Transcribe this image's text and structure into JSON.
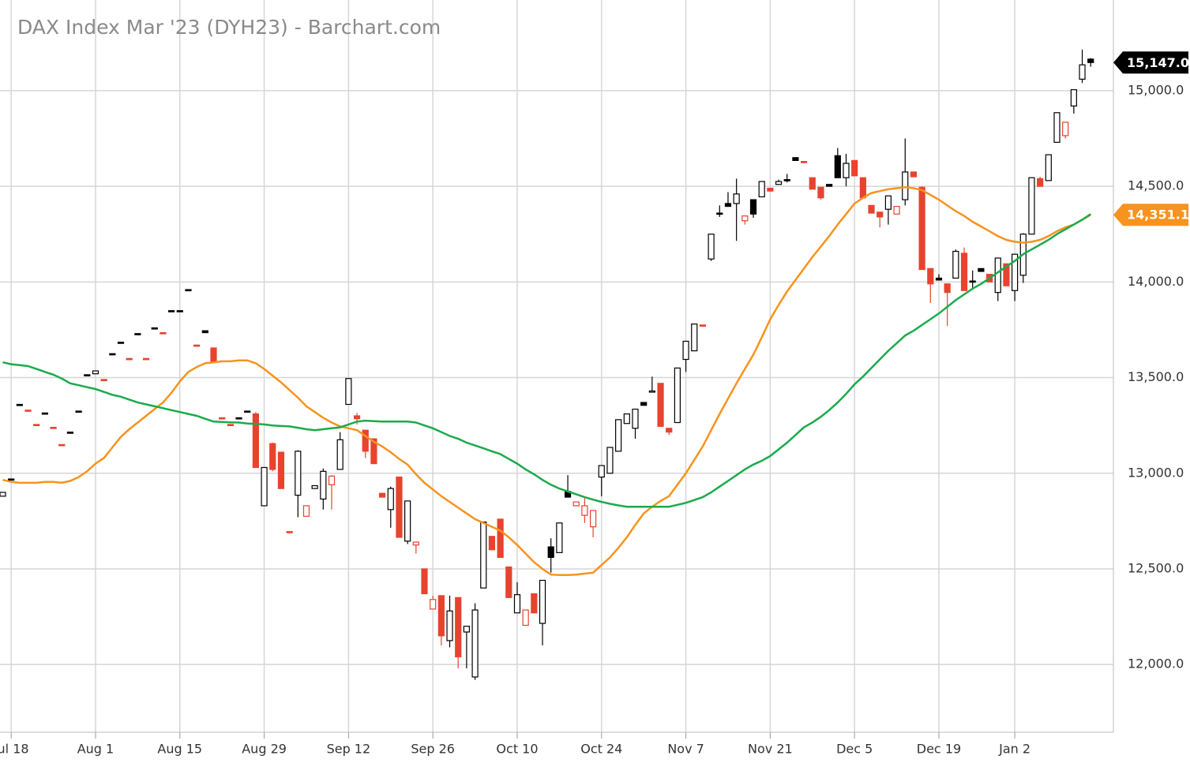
{
  "chart_data": {
    "type": "candlestick",
    "title": "DAX Index Mar '23 (DYH23) - Barchart.com",
    "categories": [
      null,
      "Jul 18",
      null,
      null,
      null,
      null,
      null,
      null,
      null,
      null,
      null,
      "Aug 1",
      null,
      null,
      null,
      null,
      null,
      null,
      null,
      null,
      null,
      "Aug 15",
      null,
      null,
      null,
      null,
      null,
      null,
      null,
      null,
      null,
      "Aug 29",
      null,
      null,
      null,
      null,
      null,
      null,
      null,
      null,
      null,
      "Sep 12",
      null,
      null,
      null,
      null,
      null,
      null,
      null,
      null,
      null,
      "Sep 26",
      null,
      null,
      null,
      null,
      null,
      null,
      null,
      null,
      null,
      "Oct 10",
      null,
      null,
      null,
      null,
      null,
      null,
      null,
      null,
      null,
      "Oct 24",
      null,
      null,
      null,
      null,
      null,
      null,
      null,
      null,
      null,
      "Nov 7",
      null,
      null,
      null,
      null,
      null,
      null,
      null,
      null,
      null,
      "Nov 21",
      null,
      null,
      null,
      null,
      null,
      null,
      null,
      null,
      null,
      "Dec 5",
      null,
      null,
      null,
      null,
      null,
      null,
      null,
      null,
      null,
      "Dec 19",
      null,
      null,
      null,
      null,
      null,
      null,
      null,
      null,
      "Jan 2",
      null,
      null,
      null,
      null,
      null,
      null,
      null,
      null,
      null
    ],
    "ohlc": [
      [
        12880,
        12900,
        12880,
        12900
      ],
      [
        12970,
        12970,
        12970,
        12970
      ],
      [
        13360,
        13360,
        13360,
        13360
      ],
      [
        13330,
        13330,
        13330,
        13330
      ],
      [
        13255,
        13255,
        13255,
        13255
      ],
      [
        13315,
        13315,
        13315,
        13315
      ],
      [
        13240,
        13240,
        13240,
        13240
      ],
      [
        13150,
        13150,
        13150,
        13150
      ],
      [
        13215,
        13215,
        13215,
        13215
      ],
      [
        13325,
        13325,
        13325,
        13325
      ],
      [
        13515,
        13515,
        13515,
        13515
      ],
      [
        13520,
        13535,
        13520,
        13535
      ],
      [
        13490,
        13490,
        13490,
        13490
      ],
      [
        13625,
        13625,
        13625,
        13625
      ],
      [
        13685,
        13685,
        13685,
        13685
      ],
      [
        13600,
        13600,
        13600,
        13600
      ],
      [
        13730,
        13730,
        13730,
        13730
      ],
      [
        13600,
        13600,
        13600,
        13600
      ],
      [
        13760,
        13760,
        13760,
        13760
      ],
      [
        13735,
        13735,
        13735,
        13735
      ],
      [
        13850,
        13850,
        13850,
        13850
      ],
      [
        13850,
        13850,
        13850,
        13850
      ],
      [
        13960,
        13960,
        13960,
        13960
      ],
      [
        13670,
        13670,
        13670,
        13670
      ],
      [
        13745,
        13745,
        13735,
        13735
      ],
      [
        13655,
        13655,
        13585,
        13585
      ],
      [
        13290,
        13290,
        13290,
        13290
      ],
      [
        13255,
        13255,
        13255,
        13255
      ],
      [
        13290,
        13290,
        13290,
        13290
      ],
      [
        13325,
        13325,
        13325,
        13325
      ],
      [
        13310,
        13320,
        13030,
        13030
      ],
      [
        12830,
        13030,
        12830,
        13030
      ],
      [
        13155,
        13160,
        13010,
        13020
      ],
      [
        13110,
        13110,
        12920,
        12920
      ],
      [
        12695,
        12695,
        12695,
        12695
      ],
      [
        12885,
        13120,
        12770,
        13115
      ],
      [
        12775,
        12830,
        12775,
        12830
      ],
      [
        12920,
        12935,
        12920,
        12935
      ],
      [
        12865,
        13025,
        12810,
        13010
      ],
      [
        12940,
        12990,
        12810,
        12985
      ],
      [
        13020,
        13215,
        13020,
        13175
      ],
      [
        13360,
        13495,
        13360,
        13495
      ],
      [
        13300,
        13315,
        13255,
        13285
      ],
      [
        13225,
        13225,
        13080,
        13115
      ],
      [
        13180,
        13180,
        13050,
        13050
      ],
      [
        12895,
        12895,
        12875,
        12875
      ],
      [
        12810,
        12930,
        12715,
        12920
      ],
      [
        12980,
        12980,
        12665,
        12665
      ],
      [
        12645,
        12855,
        12630,
        12855
      ],
      [
        12625,
        12640,
        12580,
        12640
      ],
      [
        12500,
        12500,
        12370,
        12370
      ],
      [
        12290,
        12360,
        12290,
        12340
      ],
      [
        12360,
        12360,
        12100,
        12150
      ],
      [
        12125,
        12360,
        12090,
        12280
      ],
      [
        12350,
        12350,
        11980,
        12040
      ],
      [
        12170,
        12200,
        11980,
        12200
      ],
      [
        11935,
        12320,
        11920,
        12285
      ],
      [
        12400,
        12745,
        12400,
        12745
      ],
      [
        12670,
        12670,
        12600,
        12600
      ],
      [
        12760,
        12760,
        12560,
        12560
      ],
      [
        12510,
        12510,
        12350,
        12350
      ],
      [
        12270,
        12430,
        12270,
        12365
      ],
      [
        12205,
        12285,
        12205,
        12285
      ],
      [
        12370,
        12370,
        12270,
        12270
      ],
      [
        12215,
        12440,
        12100,
        12440
      ],
      [
        12615,
        12660,
        12480,
        12560
      ],
      [
        12585,
        12740,
        12585,
        12740
      ],
      [
        12905,
        12990,
        12875,
        12875
      ],
      [
        12830,
        12850,
        12830,
        12850
      ],
      [
        12780,
        12870,
        12740,
        12830
      ],
      [
        12720,
        12805,
        12665,
        12805
      ],
      [
        12980,
        13040,
        12880,
        13040
      ],
      [
        13000,
        13135,
        13000,
        13135
      ],
      [
        13115,
        13280,
        13115,
        13280
      ],
      [
        13260,
        13310,
        13260,
        13310
      ],
      [
        13235,
        13335,
        13180,
        13335
      ],
      [
        13370,
        13370,
        13355,
        13355
      ],
      [
        13425,
        13505,
        13425,
        13430
      ],
      [
        13470,
        13470,
        13245,
        13245
      ],
      [
        13235,
        13235,
        13200,
        13215
      ],
      [
        13265,
        13550,
        13265,
        13550
      ],
      [
        13595,
        13690,
        13530,
        13690
      ],
      [
        13640,
        13780,
        13640,
        13780
      ],
      [
        13775,
        13775,
        13775,
        13775
      ],
      [
        14120,
        14250,
        14110,
        14250
      ],
      [
        14360,
        14400,
        14340,
        14355
      ],
      [
        14410,
        14470,
        14395,
        14395
      ],
      [
        14410,
        14540,
        14215,
        14460
      ],
      [
        14320,
        14345,
        14300,
        14345
      ],
      [
        14430,
        14430,
        14335,
        14355
      ],
      [
        14445,
        14525,
        14445,
        14525
      ],
      [
        14490,
        14490,
        14475,
        14475
      ],
      [
        14510,
        14535,
        14510,
        14525
      ],
      [
        14535,
        14565,
        14520,
        14530
      ],
      [
        14650,
        14650,
        14635,
        14635
      ],
      [
        14630,
        14630,
        14625,
        14625
      ],
      [
        14545,
        14545,
        14485,
        14485
      ],
      [
        14495,
        14495,
        14430,
        14440
      ],
      [
        14510,
        14510,
        14500,
        14500
      ],
      [
        14660,
        14700,
        14545,
        14545
      ],
      [
        14545,
        14670,
        14500,
        14620
      ],
      [
        14635,
        14635,
        14555,
        14555
      ],
      [
        14545,
        14545,
        14440,
        14440
      ],
      [
        14400,
        14400,
        14360,
        14360
      ],
      [
        14365,
        14365,
        14285,
        14340
      ],
      [
        14380,
        14450,
        14300,
        14450
      ],
      [
        14355,
        14395,
        14355,
        14395
      ],
      [
        14430,
        14750,
        14400,
        14575
      ],
      [
        14575,
        14575,
        14550,
        14550
      ],
      [
        14495,
        14500,
        14065,
        14065
      ],
      [
        14070,
        14070,
        13890,
        13990
      ],
      [
        14020,
        14040,
        14010,
        14010
      ],
      [
        13990,
        13990,
        13770,
        13945
      ],
      [
        14020,
        14170,
        14020,
        14160
      ],
      [
        14150,
        14180,
        13955,
        13955
      ],
      [
        14005,
        14060,
        13970,
        14000
      ],
      [
        14070,
        14070,
        14055,
        14055
      ],
      [
        14040,
        14040,
        14000,
        14000
      ],
      [
        13945,
        14125,
        13900,
        14125
      ],
      [
        14095,
        14095,
        13980,
        13980
      ],
      [
        13955,
        14145,
        13900,
        14145
      ],
      [
        14035,
        14255,
        13995,
        14250
      ],
      [
        14250,
        14545,
        14250,
        14545
      ],
      [
        14540,
        14550,
        14500,
        14500
      ],
      [
        14530,
        14665,
        14530,
        14665
      ],
      [
        14730,
        14885,
        14730,
        14885
      ],
      [
        14765,
        14835,
        14750,
        14835
      ],
      [
        14920,
        15005,
        14880,
        15005
      ],
      [
        15060,
        15215,
        15040,
        15135
      ],
      [
        15165,
        15170,
        15125,
        15147
      ]
    ],
    "up_color": "#000000",
    "down_color": "#e8432e",
    "series": [
      {
        "type": "line",
        "color": "#f7931e",
        "values": [
          12965,
          12955,
          12950,
          12950,
          12950,
          12955,
          12955,
          12950,
          12960,
          12980,
          13010,
          13050,
          13080,
          13135,
          13190,
          13230,
          13265,
          13300,
          13335,
          13370,
          13420,
          13480,
          13530,
          13555,
          13575,
          13580,
          13585,
          13585,
          13590,
          13590,
          13575,
          13545,
          13510,
          13475,
          13435,
          13395,
          13350,
          13320,
          13290,
          13265,
          13245,
          13235,
          13225,
          13195,
          13165,
          13140,
          13110,
          13075,
          13045,
          12995,
          12950,
          12915,
          12880,
          12850,
          12820,
          12790,
          12760,
          12740,
          12720,
          12700,
          12665,
          12625,
          12580,
          12535,
          12500,
          12470,
          12468,
          12468,
          12470,
          12475,
          12480,
          12520,
          12560,
          12610,
          12665,
          12730,
          12790,
          12825,
          12855,
          12880,
          12940,
          13000,
          13070,
          13140,
          13225,
          13310,
          13390,
          13470,
          13545,
          13620,
          13710,
          13805,
          13880,
          13950,
          14010,
          14070,
          14130,
          14185,
          14240,
          14300,
          14355,
          14410,
          14440,
          14465,
          14475,
          14485,
          14490,
          14495,
          14490,
          14480,
          14455,
          14430,
          14400,
          14370,
          14345,
          14315,
          14290,
          14265,
          14240,
          14220,
          14210,
          14205,
          14210,
          14220,
          14240,
          14265,
          14285,
          14300,
          14325,
          14351.1
        ],
        "last_label": {
          "value": 14351.1,
          "label": "14,351.1"
        }
      },
      {
        "type": "line",
        "color": "#1aab4b",
        "values": [
          13580,
          13570,
          13565,
          13560,
          13545,
          13530,
          13515,
          13495,
          13470,
          13460,
          13450,
          13440,
          13425,
          13410,
          13400,
          13385,
          13370,
          13360,
          13350,
          13340,
          13330,
          13320,
          13310,
          13300,
          13285,
          13270,
          13268,
          13266,
          13265,
          13260,
          13258,
          13255,
          13250,
          13247,
          13245,
          13238,
          13230,
          13225,
          13230,
          13235,
          13240,
          13255,
          13270,
          13275,
          13272,
          13270,
          13270,
          13270,
          13270,
          13265,
          13250,
          13235,
          13215,
          13195,
          13180,
          13160,
          13145,
          13130,
          13115,
          13100,
          13075,
          13050,
          13020,
          12995,
          12965,
          12940,
          12920,
          12905,
          12890,
          12875,
          12862,
          12850,
          12840,
          12832,
          12825,
          12825,
          12825,
          12825,
          12825,
          12825,
          12835,
          12845,
          12860,
          12875,
          12900,
          12930,
          12960,
          12990,
          13020,
          13045,
          13065,
          13090,
          13125,
          13160,
          13200,
          13240,
          13265,
          13295,
          13330,
          13370,
          13415,
          13465,
          13505,
          13550,
          13595,
          13640,
          13680,
          13720,
          13745,
          13775,
          13805,
          13835,
          13870,
          13905,
          13935,
          13965,
          13990,
          14020,
          14050,
          14080,
          14110,
          14145,
          14170,
          14195,
          14220,
          14250,
          14275,
          14300,
          14325,
          14355
        ]
      }
    ],
    "last_price": {
      "value": 15147,
      "label": "15,147.0"
    },
    "ylim": [
      11646,
      15474
    ],
    "yticks": [
      {
        "value": 12000,
        "label": "12,000.0"
      },
      {
        "value": 12500,
        "label": "12,500.0"
      },
      {
        "value": 13000,
        "label": "13,000.0"
      },
      {
        "value": 13500,
        "label": "13,500.0"
      },
      {
        "value": 14000,
        "label": "14,000.0"
      },
      {
        "value": 14500,
        "label": "14,500.0"
      },
      {
        "value": 15000,
        "label": "15,000.0"
      }
    ],
    "grid": true
  }
}
